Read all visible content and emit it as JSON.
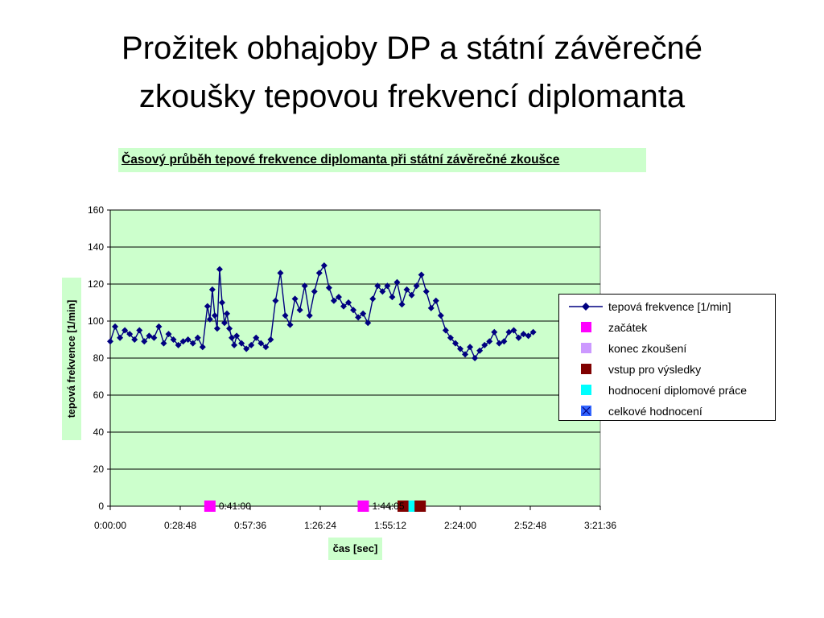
{
  "slide": {
    "title_line1": "Prožitek obhajoby DP a státní závěrečné",
    "title_line2": "zkoušky tepovou frekvencí diplomanta"
  },
  "colors": {
    "plot_bg": "#ccffcc",
    "label_bg": "#ccffcc",
    "heart_rate": "#000080",
    "zacatek": "#ff00ff",
    "konec_zkouseni": "#cc99ff",
    "vstup_pro_vysledky": "#800000",
    "hodnoceni_dp": "#00ffff",
    "celkove_hodnoceni": "#3366ff"
  },
  "chart_data": {
    "type": "line",
    "title": "Časový průběh tepové frekvence diplomanta  při státní závěrečné zkoušce",
    "xlabel": "čas [sec]",
    "ylabel": "tepová frekvence [1/min]",
    "ylim": [
      0,
      160
    ],
    "yticks": [
      "0",
      "20",
      "40",
      "60",
      "80",
      "100",
      "120",
      "140",
      "160"
    ],
    "xlim": [
      "0:00:00",
      "3:21:36"
    ],
    "xticks": [
      "0:00:00",
      "0:28:48",
      "0:57:36",
      "1:26:24",
      "1:55:12",
      "2:24:00",
      "2:52:48",
      "3:21:36"
    ],
    "grid": "horizontal",
    "legend_position": "right",
    "series": [
      {
        "name": "tepová  frekvence [1/min]",
        "x_unit": "minutes",
        "x": [
          0,
          2,
          4,
          6,
          8,
          10,
          12,
          14,
          16,
          18,
          20,
          22,
          24,
          26,
          28,
          30,
          32,
          34,
          36,
          38,
          40,
          41,
          42,
          43,
          44,
          45,
          46,
          47,
          48,
          49,
          50,
          51,
          52,
          54,
          56,
          58,
          60,
          62,
          64,
          66,
          68,
          70,
          72,
          74,
          76,
          78,
          80,
          82,
          84,
          86,
          88,
          90,
          92,
          94,
          96,
          98,
          100,
          102,
          104,
          106,
          108,
          110,
          112,
          114,
          116,
          118,
          120,
          122,
          124,
          126,
          128,
          130,
          132,
          134,
          136,
          138,
          140,
          142,
          144,
          146,
          148,
          150,
          152,
          154,
          156,
          158,
          160,
          162,
          164,
          166,
          168,
          170,
          172,
          174
        ],
        "y": [
          89,
          97,
          91,
          95,
          93,
          90,
          95,
          89,
          92,
          91,
          97,
          88,
          93,
          90,
          87,
          89,
          90,
          88,
          91,
          86,
          108,
          101,
          117,
          103,
          96,
          128,
          110,
          99,
          104,
          96,
          91,
          87,
          92,
          88,
          85,
          87,
          91,
          88,
          86,
          90,
          111,
          126,
          103,
          98,
          112,
          106,
          119,
          103,
          116,
          126,
          130,
          118,
          111,
          113,
          108,
          110,
          106,
          102,
          104,
          99,
          112,
          119,
          116,
          119,
          113,
          121,
          109,
          117,
          114,
          119,
          125,
          116,
          107,
          111,
          103,
          95,
          91,
          88,
          85,
          82,
          86,
          80,
          84,
          87,
          89,
          94,
          88,
          89,
          94,
          95,
          91,
          93,
          92,
          94
        ]
      },
      {
        "name": "začátek",
        "x_label": "0:41:00",
        "y": 0
      },
      {
        "name": "konec zkoušení",
        "x_label": "1:44:05",
        "y": 0
      },
      {
        "name": "vstup pro výsledky",
        "y": 0
      },
      {
        "name": "hodnocení diplomové práce",
        "y": 0
      },
      {
        "name": "celkové hodnocení",
        "y": 0
      }
    ]
  }
}
